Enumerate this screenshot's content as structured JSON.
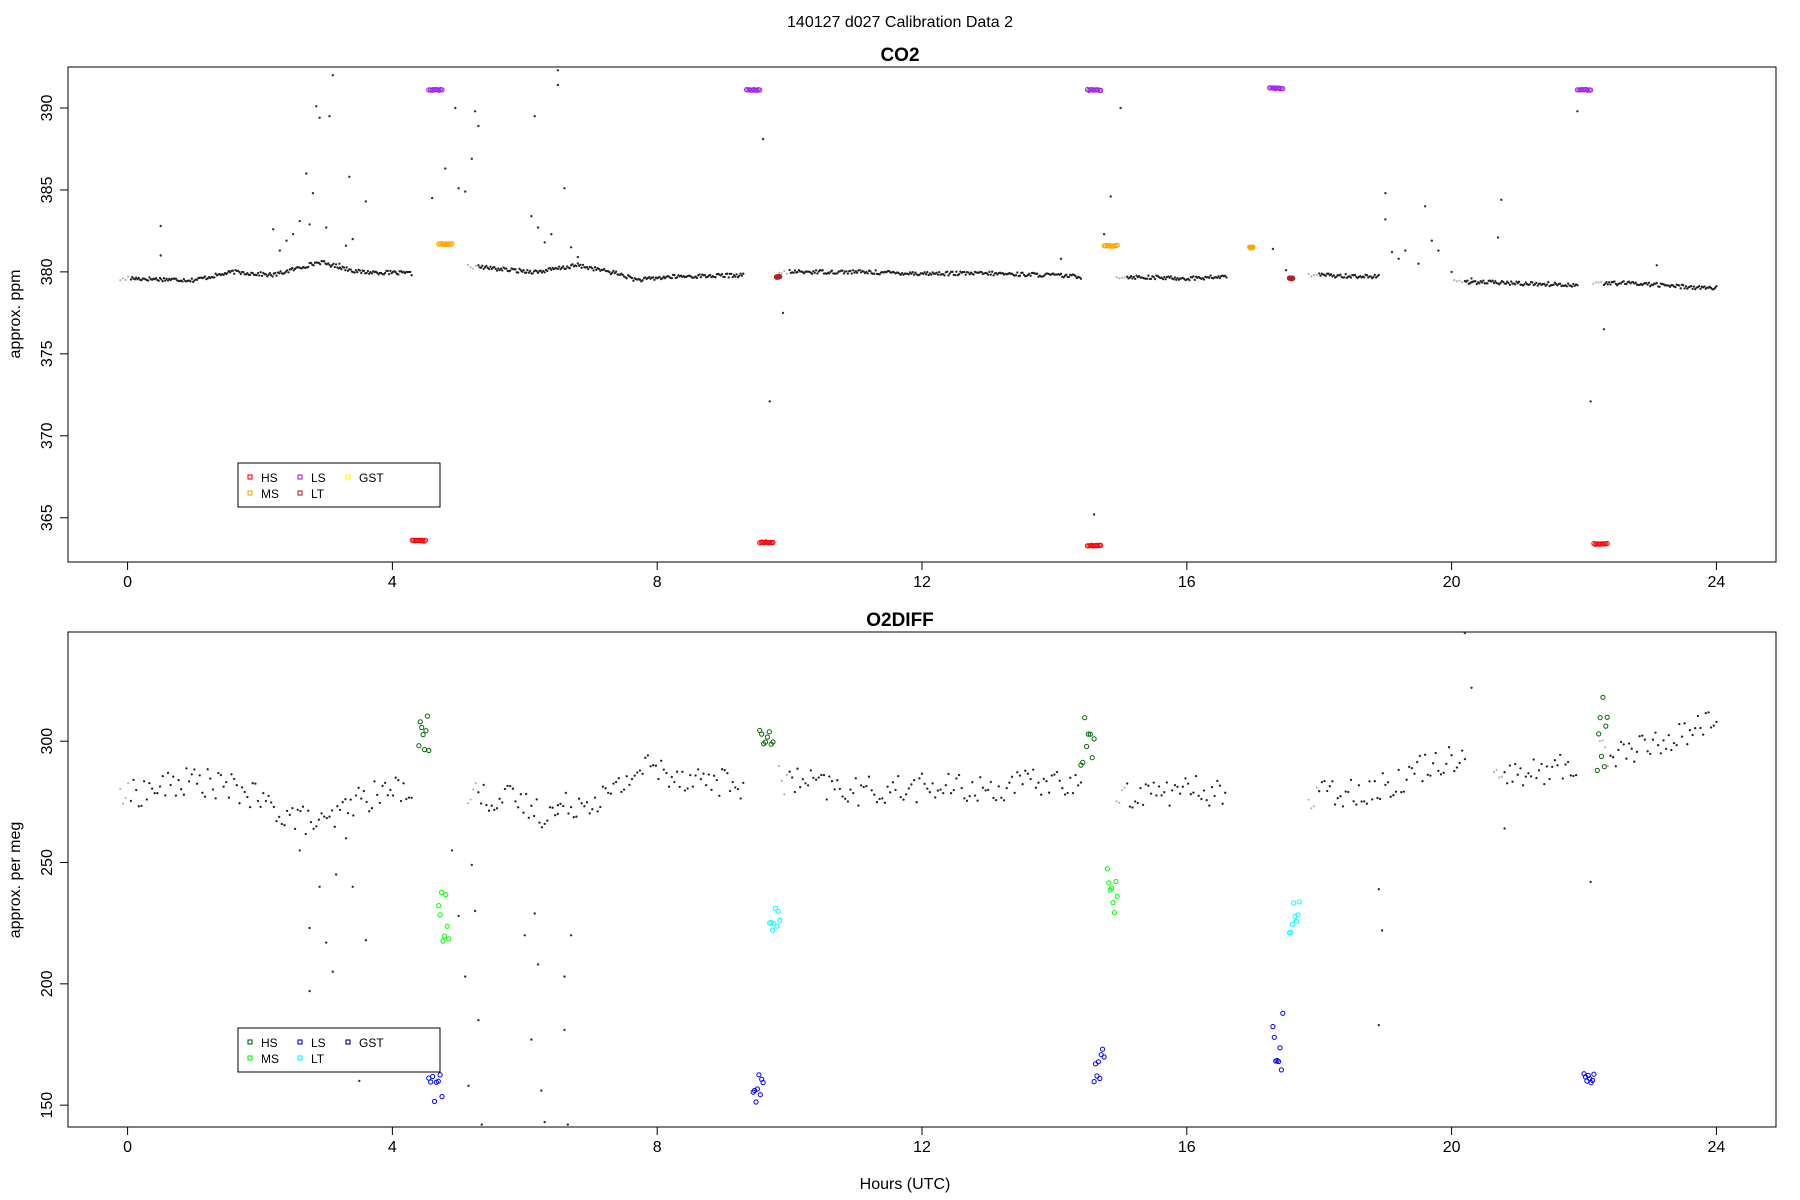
{
  "main_title": "140127   d027   Calibration Data 2",
  "chart_data": [
    {
      "type": "scatter",
      "title": "CO2",
      "xlabel": "",
      "ylabel": "approx. ppm",
      "xlim": [
        -0.9,
        24.9
      ],
      "ylim": [
        362.3,
        392.5
      ],
      "x_ticks": [
        0,
        4,
        8,
        12,
        16,
        20,
        24
      ],
      "y_ticks": [
        365,
        370,
        375,
        380,
        385,
        390
      ],
      "legend": {
        "placement": "bottom-left",
        "entries": [
          {
            "label": "HS",
            "color": "#ff0000"
          },
          {
            "label": "MS",
            "color": "#ffa500"
          },
          {
            "label": "LS",
            "color": "#a020f0"
          },
          {
            "label": "LT",
            "color": "#b22222"
          },
          {
            "label": "GST",
            "color": "#ffff00"
          }
        ]
      },
      "baseline_segments": [
        {
          "x": [
            0.05,
            1.0,
            1.6,
            2.2,
            2.9,
            3.5,
            4.3
          ],
          "y": [
            379.6,
            379.5,
            380.0,
            379.8,
            380.6,
            380.0,
            379.9
          ]
        },
        {
          "x": [
            5.3,
            5.8,
            6.2,
            6.8,
            7.4,
            7.7,
            8.2,
            9.3
          ],
          "y": [
            380.3,
            380.1,
            380.0,
            380.4,
            379.9,
            379.5,
            379.7,
            379.8
          ]
        },
        {
          "x": [
            10.0,
            11.0,
            12.0,
            13.0,
            14.0,
            14.4
          ],
          "y": [
            380.0,
            380.0,
            379.9,
            379.9,
            379.8,
            379.7
          ]
        },
        {
          "x": [
            15.1,
            16.0,
            16.6
          ],
          "y": [
            379.7,
            379.6,
            379.7
          ]
        },
        {
          "x": [
            18.0,
            18.9
          ],
          "y": [
            379.8,
            379.7
          ]
        },
        {
          "x": [
            20.2,
            21.0,
            21.9
          ],
          "y": [
            379.4,
            379.3,
            379.2
          ]
        },
        {
          "x": [
            22.3,
            22.8,
            23.5,
            24.0
          ],
          "y": [
            379.3,
            379.3,
            379.1,
            379.0
          ]
        }
      ],
      "scatter_points": [
        {
          "x": 0.5,
          "y": 382.8
        },
        {
          "x": 0.5,
          "y": 381.0
        },
        {
          "x": 2.2,
          "y": 382.6
        },
        {
          "x": 2.3,
          "y": 381.3
        },
        {
          "x": 2.4,
          "y": 381.9
        },
        {
          "x": 2.5,
          "y": 382.3
        },
        {
          "x": 2.6,
          "y": 383.1
        },
        {
          "x": 2.7,
          "y": 386.0
        },
        {
          "x": 2.75,
          "y": 382.9
        },
        {
          "x": 2.8,
          "y": 384.8
        },
        {
          "x": 2.85,
          "y": 390.1
        },
        {
          "x": 2.9,
          "y": 389.4
        },
        {
          "x": 3.0,
          "y": 382.7
        },
        {
          "x": 3.05,
          "y": 389.5
        },
        {
          "x": 3.1,
          "y": 392.0
        },
        {
          "x": 3.2,
          "y": 380.5
        },
        {
          "x": 3.3,
          "y": 381.6
        },
        {
          "x": 3.35,
          "y": 385.8
        },
        {
          "x": 3.4,
          "y": 382.0
        },
        {
          "x": 3.6,
          "y": 384.3
        },
        {
          "x": 4.6,
          "y": 384.5
        },
        {
          "x": 4.8,
          "y": 386.3
        },
        {
          "x": 4.95,
          "y": 390.0
        },
        {
          "x": 5.0,
          "y": 385.1
        },
        {
          "x": 5.1,
          "y": 384.9
        },
        {
          "x": 5.2,
          "y": 386.9
        },
        {
          "x": 5.25,
          "y": 389.8
        },
        {
          "x": 5.3,
          "y": 388.9
        },
        {
          "x": 6.1,
          "y": 383.4
        },
        {
          "x": 6.15,
          "y": 389.5
        },
        {
          "x": 6.2,
          "y": 382.7
        },
        {
          "x": 6.3,
          "y": 381.8
        },
        {
          "x": 6.4,
          "y": 382.3
        },
        {
          "x": 6.5,
          "y": 392.3
        },
        {
          "x": 6.5,
          "y": 391.4
        },
        {
          "x": 6.6,
          "y": 385.1
        },
        {
          "x": 6.7,
          "y": 381.5
        },
        {
          "x": 6.8,
          "y": 380.9
        },
        {
          "x": 9.6,
          "y": 388.1
        },
        {
          "x": 9.7,
          "y": 372.1
        },
        {
          "x": 9.9,
          "y": 377.5
        },
        {
          "x": 14.1,
          "y": 380.8
        },
        {
          "x": 14.6,
          "y": 365.2
        },
        {
          "x": 14.75,
          "y": 382.3
        },
        {
          "x": 14.85,
          "y": 384.6
        },
        {
          "x": 15.0,
          "y": 390.0
        },
        {
          "x": 17.3,
          "y": 381.4
        },
        {
          "x": 17.5,
          "y": 380.1
        },
        {
          "x": 19.0,
          "y": 384.8
        },
        {
          "x": 19.0,
          "y": 383.2
        },
        {
          "x": 19.1,
          "y": 381.2
        },
        {
          "x": 19.2,
          "y": 380.8
        },
        {
          "x": 19.3,
          "y": 381.3
        },
        {
          "x": 19.5,
          "y": 380.5
        },
        {
          "x": 19.6,
          "y": 384.0
        },
        {
          "x": 19.7,
          "y": 381.9
        },
        {
          "x": 19.8,
          "y": 381.3
        },
        {
          "x": 20.0,
          "y": 380.0
        },
        {
          "x": 20.3,
          "y": 379.6
        },
        {
          "x": 20.7,
          "y": 382.1
        },
        {
          "x": 20.75,
          "y": 384.4
        },
        {
          "x": 21.9,
          "y": 389.8
        },
        {
          "x": 22.1,
          "y": 372.1
        },
        {
          "x": 22.3,
          "y": 376.5
        },
        {
          "x": 23.1,
          "y": 380.4
        }
      ],
      "calibration_runs": [
        {
          "label": "HS",
          "color": "#ff0000",
          "x": [
            4.3,
            4.5
          ],
          "y": 363.6
        },
        {
          "label": "HS",
          "color": "#ff0000",
          "x": [
            9.55,
            9.75
          ],
          "y": 363.5
        },
        {
          "label": "HS",
          "color": "#ff0000",
          "x": [
            14.5,
            14.7
          ],
          "y": 363.3
        },
        {
          "label": "HS",
          "color": "#ff0000",
          "x": [
            22.15,
            22.35
          ],
          "y": 363.4
        },
        {
          "label": "MS",
          "color": "#ffa500",
          "x": [
            4.7,
            4.9
          ],
          "y": 381.7
        },
        {
          "label": "MS",
          "color": "#ffa500",
          "x": [
            14.75,
            14.95
          ],
          "y": 381.6
        },
        {
          "label": "MS",
          "color": "#ffa500",
          "x": [
            16.95,
            17.0
          ],
          "y": 381.5
        },
        {
          "label": "LS",
          "color": "#a020f0",
          "x": [
            4.55,
            4.75
          ],
          "y": 391.1
        },
        {
          "label": "LS",
          "color": "#a020f0",
          "x": [
            9.35,
            9.55
          ],
          "y": 391.1
        },
        {
          "label": "LS",
          "color": "#a020f0",
          "x": [
            14.5,
            14.7
          ],
          "y": 391.1
        },
        {
          "label": "LS",
          "color": "#a020f0",
          "x": [
            17.25,
            17.45
          ],
          "y": 391.2
        },
        {
          "label": "LS",
          "color": "#a020f0",
          "x": [
            21.9,
            22.1
          ],
          "y": 391.1
        },
        {
          "label": "LT",
          "color": "#b22222",
          "x": [
            9.8,
            9.85
          ],
          "y": 379.7
        },
        {
          "label": "LT",
          "color": "#b22222",
          "x": [
            17.55,
            17.6
          ],
          "y": 379.6
        }
      ]
    },
    {
      "type": "scatter",
      "title": "O2DIFF",
      "xlabel": "Hours (UTC)",
      "ylabel": "approx. per meg",
      "xlim": [
        -0.9,
        24.9
      ],
      "ylim": [
        141,
        345
      ],
      "x_ticks": [
        0,
        4,
        8,
        12,
        16,
        20,
        24
      ],
      "y_ticks": [
        150,
        200,
        250,
        300
      ],
      "legend": {
        "placement": "bottom-left",
        "entries": [
          {
            "label": "HS",
            "color": "#006400"
          },
          {
            "label": "MS",
            "color": "#00ff00"
          },
          {
            "label": "LS",
            "color": "#0000ff"
          },
          {
            "label": "LT",
            "color": "#00ffff"
          },
          {
            "label": "GST",
            "color": "#00008b"
          }
        ]
      },
      "baseline_segments": [
        {
          "x": [
            0.05,
            1.0,
            1.8,
            2.2,
            2.6,
            3.0,
            3.4,
            4.3
          ],
          "y": [
            278,
            284,
            279,
            272,
            268,
            265,
            275,
            282
          ]
        },
        {
          "x": [
            5.3,
            5.8,
            6.3,
            6.7,
            7.3,
            7.8,
            8.3,
            9.3
          ],
          "y": [
            277,
            276,
            270,
            274,
            278,
            290,
            286,
            282
          ]
        },
        {
          "x": [
            10.0,
            11.0,
            12.0,
            13.0,
            14.0,
            14.4
          ],
          "y": [
            284,
            279,
            281,
            280,
            284,
            280
          ]
        },
        {
          "x": [
            15.1,
            16.0,
            16.6
          ],
          "y": [
            278,
            280,
            279
          ]
        },
        {
          "x": [
            18.0,
            19.0,
            19.6,
            20.2
          ],
          "y": [
            278,
            281,
            290,
            295
          ]
        },
        {
          "x": [
            20.8,
            21.5,
            21.9
          ],
          "y": [
            285,
            288,
            290
          ]
        },
        {
          "x": [
            22.4,
            23.0,
            23.5,
            24.0
          ],
          "y": [
            295,
            298,
            303,
            310
          ]
        }
      ],
      "scatter_points": [
        {
          "x": 2.6,
          "y": 255
        },
        {
          "x": 2.75,
          "y": 223
        },
        {
          "x": 2.75,
          "y": 197
        },
        {
          "x": 2.8,
          "y": 165
        },
        {
          "x": 2.9,
          "y": 240
        },
        {
          "x": 3.0,
          "y": 217
        },
        {
          "x": 3.1,
          "y": 205
        },
        {
          "x": 3.15,
          "y": 245
        },
        {
          "x": 3.3,
          "y": 260
        },
        {
          "x": 3.4,
          "y": 240
        },
        {
          "x": 3.5,
          "y": 160
        },
        {
          "x": 3.6,
          "y": 218
        },
        {
          "x": 4.9,
          "y": 255
        },
        {
          "x": 5.0,
          "y": 228
        },
        {
          "x": 5.1,
          "y": 203
        },
        {
          "x": 5.15,
          "y": 158
        },
        {
          "x": 5.2,
          "y": 249
        },
        {
          "x": 5.25,
          "y": 230
        },
        {
          "x": 5.3,
          "y": 185
        },
        {
          "x": 5.35,
          "y": 142
        },
        {
          "x": 6.0,
          "y": 220
        },
        {
          "x": 6.1,
          "y": 177
        },
        {
          "x": 6.15,
          "y": 229
        },
        {
          "x": 6.2,
          "y": 208
        },
        {
          "x": 6.25,
          "y": 156
        },
        {
          "x": 6.3,
          "y": 143
        },
        {
          "x": 6.5,
          "y": 270
        },
        {
          "x": 6.6,
          "y": 181
        },
        {
          "x": 6.65,
          "y": 142
        },
        {
          "x": 6.7,
          "y": 220
        },
        {
          "x": 6.6,
          "y": 203
        },
        {
          "x": 18.9,
          "y": 239
        },
        {
          "x": 18.95,
          "y": 222
        },
        {
          "x": 18.9,
          "y": 183
        },
        {
          "x": 20.2,
          "y": 346
        },
        {
          "x": 20.3,
          "y": 322
        },
        {
          "x": 20.8,
          "y": 264
        },
        {
          "x": 22.1,
          "y": 242
        }
      ],
      "calibration_runs": [
        {
          "label": "HS",
          "color": "#006400",
          "x": [
            4.4,
            4.55
          ],
          "y": [
            294,
            311
          ]
        },
        {
          "label": "HS",
          "color": "#006400",
          "x": [
            9.55,
            9.75
          ],
          "y": [
            298,
            305
          ]
        },
        {
          "label": "HS",
          "color": "#006400",
          "x": [
            14.4,
            14.6
          ],
          "y": [
            288,
            312
          ]
        },
        {
          "label": "HS",
          "color": "#006400",
          "x": [
            22.2,
            22.35
          ],
          "y": [
            285,
            320
          ]
        },
        {
          "label": "MS",
          "color": "#00ff00",
          "x": [
            4.7,
            4.85
          ],
          "y": [
            215,
            245
          ]
        },
        {
          "label": "MS",
          "color": "#00ff00",
          "x": [
            14.8,
            14.95
          ],
          "y": [
            229,
            248
          ]
        },
        {
          "label": "LS",
          "color": "#0000ff",
          "x": [
            4.55,
            4.75
          ],
          "y": [
            151,
            163
          ]
        },
        {
          "label": "LS",
          "color": "#0000ff",
          "x": [
            9.45,
            9.6
          ],
          "y": [
            148,
            164
          ]
        },
        {
          "label": "LS",
          "color": "#0000ff",
          "x": [
            14.6,
            14.75
          ],
          "y": [
            153,
            175
          ]
        },
        {
          "label": "LS",
          "color": "#0000ff",
          "x": [
            17.3,
            17.45
          ],
          "y": [
            164,
            189
          ]
        },
        {
          "label": "LS",
          "color": "#0000ff",
          "x": [
            22.0,
            22.15
          ],
          "y": [
            157,
            166
          ]
        },
        {
          "label": "LT",
          "color": "#00ffff",
          "x": [
            9.7,
            9.85
          ],
          "y": [
            222,
            232
          ]
        },
        {
          "label": "LT",
          "color": "#00ffff",
          "x": [
            17.55,
            17.7
          ],
          "y": [
            221,
            235
          ]
        }
      ]
    }
  ]
}
